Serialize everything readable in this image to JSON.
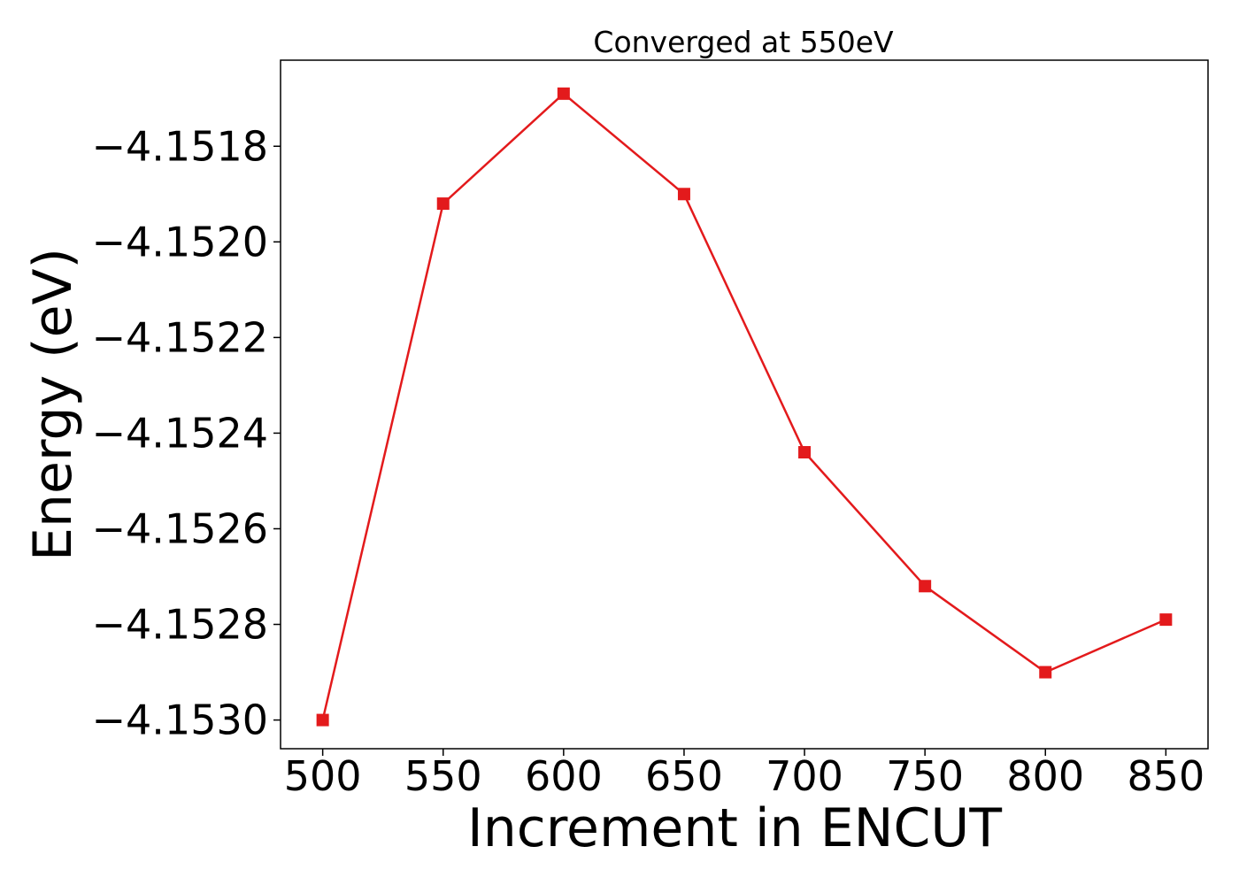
{
  "chart_data": {
    "type": "line",
    "title": "Converged at 550eV",
    "xlabel": "Increment in ENCUT",
    "ylabel": "Energy (eV)",
    "x": [
      500,
      550,
      600,
      650,
      700,
      750,
      800,
      850
    ],
    "series": [
      {
        "values": [
          -4.153,
          -4.15192,
          -4.15169,
          -4.1519,
          -4.15244,
          -4.15272,
          -4.1529,
          -4.15279
        ],
        "color": "#e31a1c",
        "marker": "square"
      }
    ],
    "xticks": [
      500,
      550,
      600,
      650,
      700,
      750,
      800,
      850
    ],
    "xtick_labels": [
      "500",
      "550",
      "600",
      "650",
      "700",
      "750",
      "800",
      "850"
    ],
    "yticks": [
      -4.153,
      -4.1528,
      -4.1526,
      -4.1524,
      -4.1522,
      -4.152,
      -4.1518
    ],
    "ytick_labels": [
      "−4.1530",
      "−4.1528",
      "−4.1526",
      "−4.1524",
      "−4.1522",
      "−4.1520",
      "−4.1518"
    ],
    "xlim": [
      482.5,
      867.5
    ],
    "ylim": [
      -4.15306,
      -4.15162
    ],
    "grid": false,
    "legend": "none"
  }
}
